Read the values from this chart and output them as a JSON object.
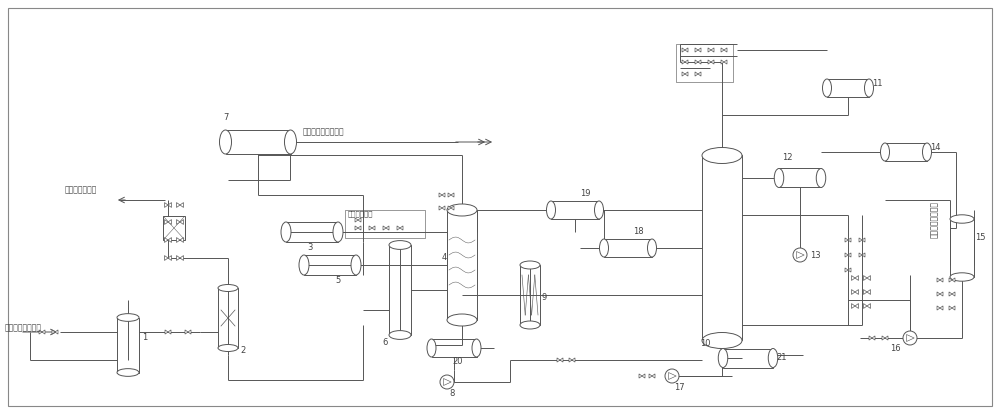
{
  "title": "",
  "bg_color": "#ffffff",
  "line_color": "#555555",
  "equipment_color": "#ffffff",
  "text_color": "#444444",
  "labels": {
    "inlet": "催化干气自催化来",
    "outlet_fuel": "干气去燃料气管",
    "reactor_label": "脱丙烯干气去反应器",
    "fuel_manifold": "至燃料气管网",
    "fuel_manifold2": "(-)-(-)-(-)→",
    "rich_propylene": "富丙烯干气出装置",
    "num1": "1",
    "num2": "2",
    "num3": "3",
    "num4": "4",
    "num5": "5",
    "num6": "6",
    "num7": "7",
    "num8": "8",
    "num9": "9",
    "num10": "10",
    "num11": "11",
    "num12": "12",
    "num13": "13",
    "num14": "14",
    "num15": "15",
    "num16": "16",
    "num17": "17",
    "num18": "18",
    "num19": "19",
    "num20": "20",
    "num21": "21"
  },
  "figsize": [
    10.0,
    4.11
  ],
  "dpi": 100
}
